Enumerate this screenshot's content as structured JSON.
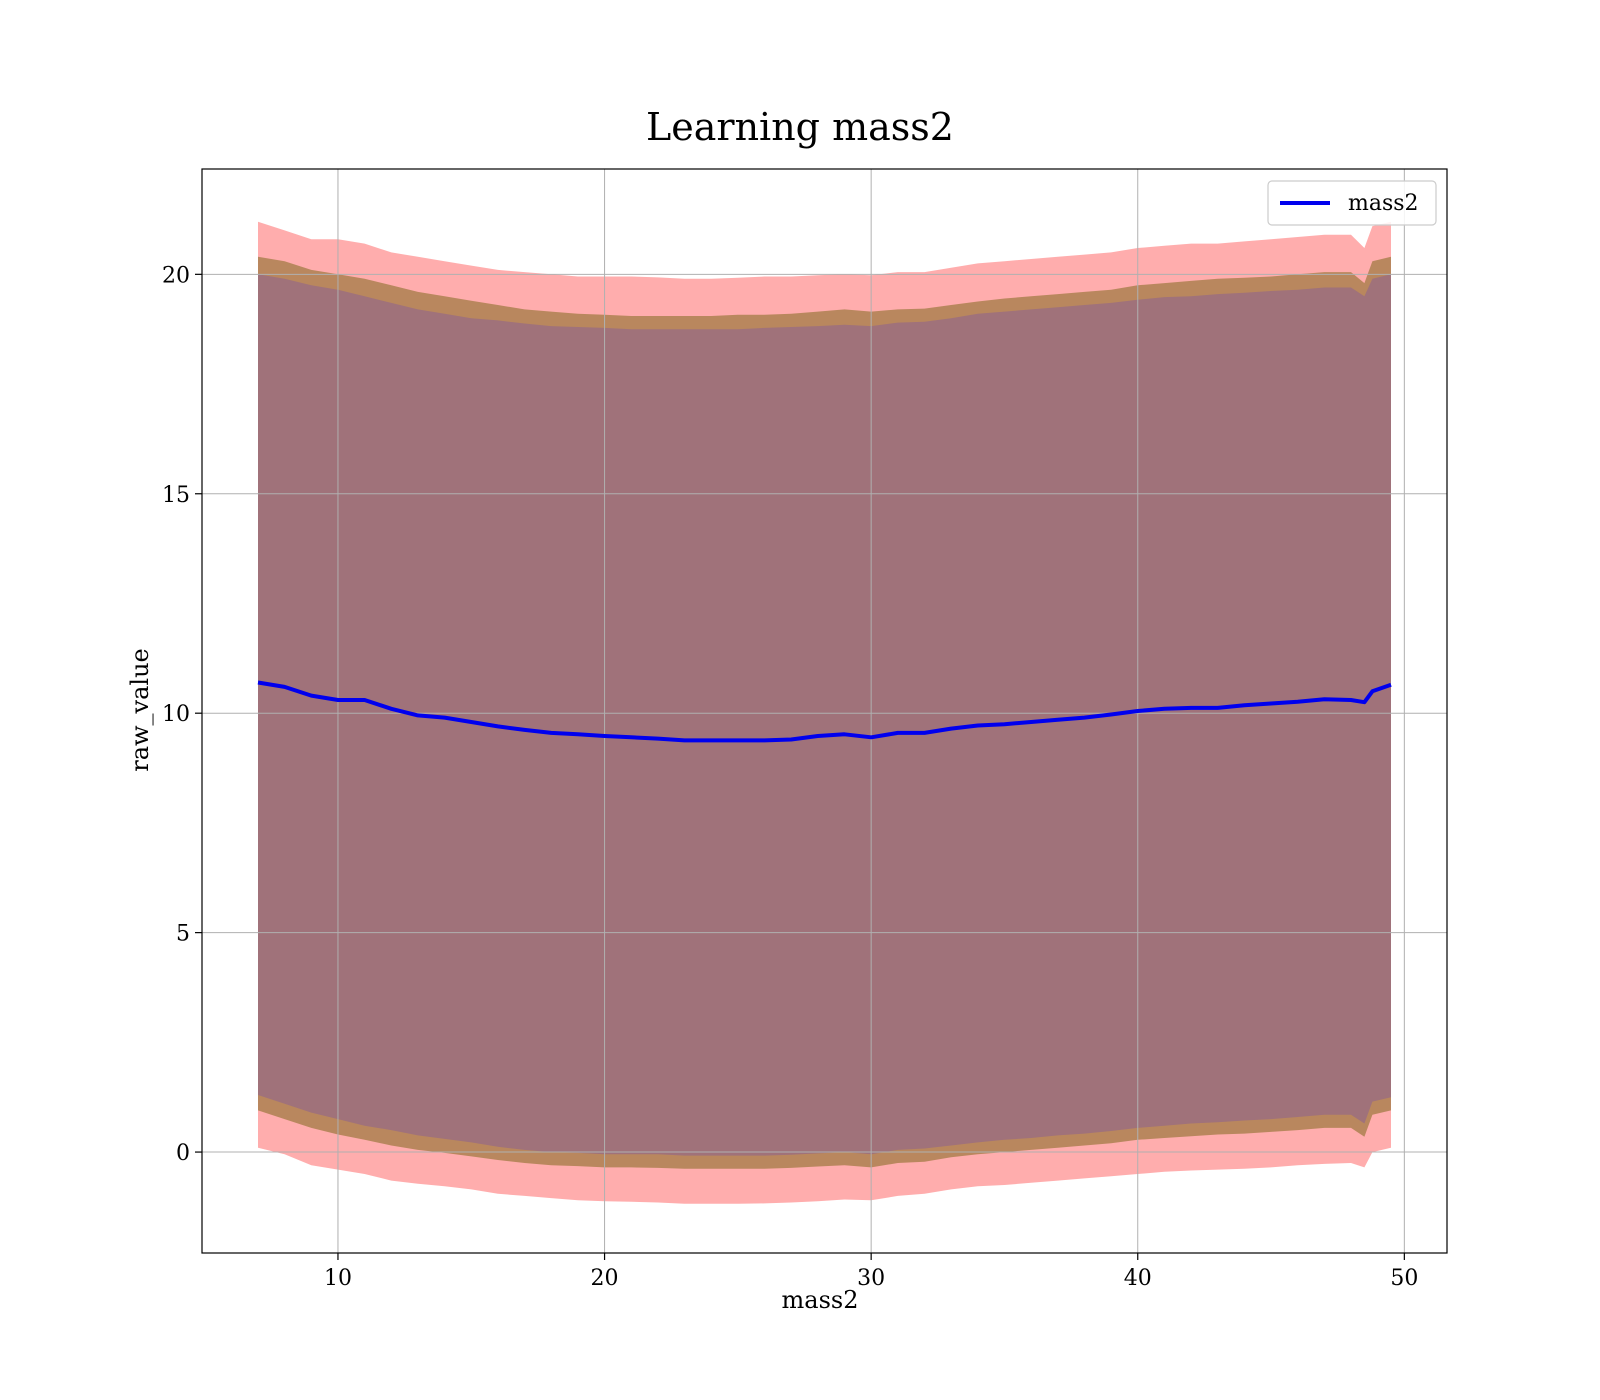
{
  "chart_data": {
    "type": "area",
    "title": "Learning mass2",
    "xlabel": "mass2",
    "ylabel": "raw_value",
    "xlim": [
      4.9,
      51.6
    ],
    "ylim": [
      -2.3,
      22.4
    ],
    "xticks": [
      10,
      20,
      30,
      40,
      50
    ],
    "xtick_labels": [
      "10",
      "20",
      "30",
      "40",
      "50"
    ],
    "yticks": [
      0,
      5,
      10,
      15,
      20
    ],
    "ytick_labels": [
      "0",
      "5",
      "10",
      "15",
      "20"
    ],
    "grid": true,
    "legend": {
      "position": "top-right",
      "entries": [
        "mass2"
      ]
    },
    "colors": {
      "line": "#0000ee",
      "band_outer": "#ff9999",
      "band_middle": "#b5855a",
      "band_inner": "#a0727a",
      "grid": "#b0b0b0"
    },
    "x": [
      7.0,
      8.0,
      9.0,
      10.0,
      11.0,
      12.0,
      13.0,
      14.0,
      15.0,
      16.0,
      17.0,
      18.0,
      19.0,
      20.0,
      21.0,
      22.0,
      23.0,
      24.0,
      25.0,
      26.0,
      27.0,
      28.0,
      29.0,
      30.0,
      31.0,
      32.0,
      33.0,
      34.0,
      35.0,
      36.0,
      37.0,
      38.0,
      39.0,
      40.0,
      41.0,
      42.0,
      43.0,
      44.0,
      45.0,
      46.0,
      47.0,
      48.0,
      48.5,
      48.8,
      49.5
    ],
    "series": [
      {
        "name": "mass2",
        "values": [
          10.7,
          10.6,
          10.4,
          10.3,
          10.3,
          10.1,
          9.95,
          9.9,
          9.8,
          9.7,
          9.62,
          9.55,
          9.52,
          9.48,
          9.45,
          9.42,
          9.38,
          9.38,
          9.38,
          9.38,
          9.4,
          9.48,
          9.52,
          9.45,
          9.55,
          9.55,
          9.65,
          9.72,
          9.75,
          9.8,
          9.85,
          9.9,
          9.97,
          10.05,
          10.1,
          10.12,
          10.12,
          10.18,
          10.22,
          10.26,
          10.32,
          10.3,
          10.25,
          10.5,
          10.65
        ]
      }
    ],
    "bands": [
      {
        "name": "outer",
        "upper": [
          21.2,
          21.0,
          20.8,
          20.8,
          20.7,
          20.5,
          20.4,
          20.3,
          20.2,
          20.1,
          20.05,
          20.0,
          19.95,
          19.95,
          19.95,
          19.93,
          19.9,
          19.9,
          19.92,
          19.95,
          19.95,
          19.98,
          20.0,
          19.98,
          20.05,
          20.05,
          20.15,
          20.25,
          20.3,
          20.35,
          20.4,
          20.45,
          20.5,
          20.6,
          20.65,
          20.7,
          20.7,
          20.75,
          20.8,
          20.85,
          20.9,
          20.9,
          20.6,
          21.1,
          21.2
        ],
        "lower": [
          0.1,
          -0.05,
          -0.3,
          -0.4,
          -0.5,
          -0.65,
          -0.72,
          -0.78,
          -0.85,
          -0.95,
          -1.0,
          -1.05,
          -1.1,
          -1.12,
          -1.13,
          -1.15,
          -1.18,
          -1.18,
          -1.18,
          -1.17,
          -1.15,
          -1.12,
          -1.08,
          -1.1,
          -1.0,
          -0.95,
          -0.85,
          -0.78,
          -0.75,
          -0.7,
          -0.65,
          -0.6,
          -0.55,
          -0.5,
          -0.45,
          -0.42,
          -0.4,
          -0.38,
          -0.35,
          -0.3,
          -0.27,
          -0.25,
          -0.35,
          0.0,
          0.1
        ]
      },
      {
        "name": "middle",
        "upper": [
          20.4,
          20.3,
          20.1,
          20.0,
          19.9,
          19.75,
          19.6,
          19.5,
          19.4,
          19.3,
          19.2,
          19.15,
          19.1,
          19.08,
          19.05,
          19.05,
          19.05,
          19.05,
          19.08,
          19.08,
          19.1,
          19.15,
          19.2,
          19.15,
          19.2,
          19.22,
          19.3,
          19.38,
          19.45,
          19.5,
          19.55,
          19.6,
          19.65,
          19.75,
          19.8,
          19.85,
          19.9,
          19.92,
          19.95,
          20.0,
          20.05,
          20.05,
          19.8,
          20.3,
          20.4
        ]
      },
      {
        "name": "inner",
        "upper": [
          20.0,
          19.9,
          19.75,
          19.65,
          19.5,
          19.35,
          19.2,
          19.1,
          19.0,
          18.95,
          18.88,
          18.82,
          18.8,
          18.78,
          18.75,
          18.75,
          18.75,
          18.75,
          18.75,
          18.78,
          18.8,
          18.82,
          18.85,
          18.82,
          18.9,
          18.92,
          19.0,
          19.1,
          19.15,
          19.2,
          19.25,
          19.3,
          19.35,
          19.42,
          19.48,
          19.5,
          19.55,
          19.58,
          19.62,
          19.65,
          19.7,
          19.7,
          19.5,
          19.9,
          20.0
        ],
        "lower": [
          1.3,
          1.1,
          0.9,
          0.75,
          0.6,
          0.5,
          0.38,
          0.3,
          0.22,
          0.12,
          0.05,
          0.0,
          -0.02,
          -0.05,
          -0.05,
          -0.05,
          -0.08,
          -0.08,
          -0.08,
          -0.08,
          -0.06,
          -0.03,
          0.0,
          -0.05,
          0.05,
          0.08,
          0.15,
          0.22,
          0.28,
          0.32,
          0.38,
          0.42,
          0.48,
          0.55,
          0.6,
          0.65,
          0.68,
          0.72,
          0.75,
          0.8,
          0.85,
          0.85,
          0.65,
          1.15,
          1.25
        ]
      },
      {
        "name": "middle_lower",
        "lower": [
          0.95,
          0.75,
          0.55,
          0.4,
          0.28,
          0.15,
          0.05,
          -0.02,
          -0.1,
          -0.18,
          -0.25,
          -0.3,
          -0.32,
          -0.35,
          -0.35,
          -0.36,
          -0.38,
          -0.38,
          -0.38,
          -0.38,
          -0.36,
          -0.33,
          -0.3,
          -0.35,
          -0.25,
          -0.22,
          -0.12,
          -0.05,
          0.0,
          0.05,
          0.1,
          0.15,
          0.2,
          0.28,
          0.32,
          0.36,
          0.4,
          0.42,
          0.46,
          0.5,
          0.55,
          0.55,
          0.35,
          0.85,
          0.95
        ]
      }
    ]
  }
}
